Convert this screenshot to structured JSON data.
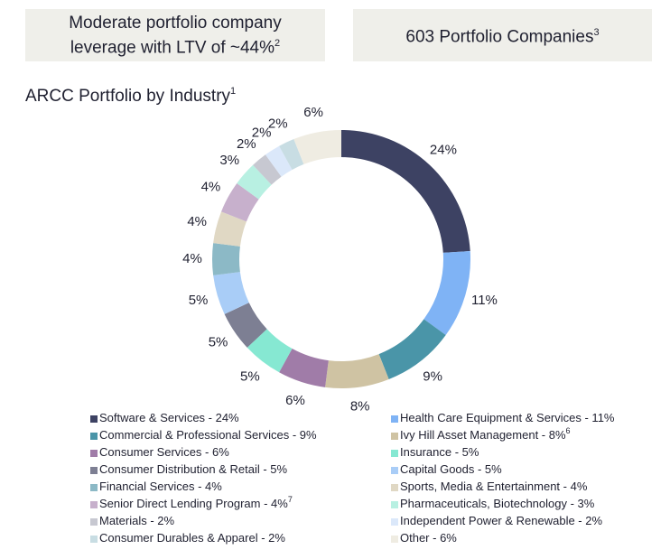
{
  "header": {
    "boxes": [
      {
        "lines": [
          "Moderate portfolio company",
          "leverage with LTV of ~44%"
        ],
        "footnote": "2"
      },
      {
        "lines": [
          "603 Portfolio Companies"
        ],
        "footnote": "3"
      }
    ]
  },
  "chart_data": {
    "type": "donut",
    "title": "ARCC Portfolio by Industry",
    "title_footnote": "1",
    "categories": [
      "Software & Services - 24%",
      "Health Care Equipment & Services - 11%",
      "Commercial & Professional Services - 9%",
      "Ivy Hill Asset Management  - 8%",
      "Consumer Services - 6%",
      "Insurance - 5%",
      "Consumer Distribution & Retail  - 5%",
      "Capital Goods - 5%",
      "Financial Services - 4%",
      "Sports, Media & Entertainment - 4%",
      "Senior Direct Lending Program - 4%",
      "Pharmaceuticals, Biotechnology  - 3%",
      "Materials - 2%",
      "Independent Power & Renewable - 2%",
      "Consumer Durables & Apparel - 2%",
      "Other - 6%"
    ],
    "legend_footnotes": [
      null,
      null,
      null,
      "6",
      null,
      null,
      null,
      null,
      null,
      null,
      "7",
      null,
      null,
      null,
      null,
      null
    ],
    "values": [
      24,
      11,
      9,
      8,
      6,
      5,
      5,
      5,
      4,
      4,
      4,
      3,
      2,
      2,
      2,
      6
    ],
    "value_labels": [
      "24%",
      "11%",
      "9%",
      "8%",
      "6%",
      "5%",
      "5%",
      "5%",
      "4%",
      "4%",
      "4%",
      "3%",
      "2%",
      "2%",
      "2%",
      "6%"
    ],
    "colors": [
      "#3d4263",
      "#7fb3f5",
      "#4a95a8",
      "#cfc3a3",
      "#a07ca8",
      "#86e8d2",
      "#7d7f93",
      "#a9cdf7",
      "#8cb9c6",
      "#e0d8c4",
      "#c7b0cc",
      "#b8f0e2",
      "#c7c8d1",
      "#dbe8fa",
      "#c8dde3",
      "#efece2"
    ]
  }
}
